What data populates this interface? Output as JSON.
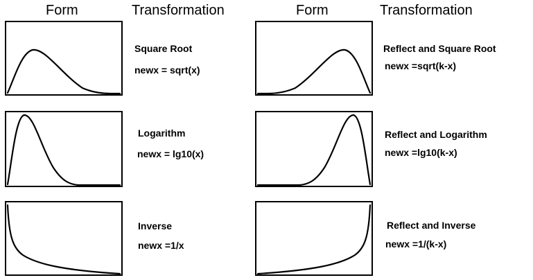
{
  "headers": {
    "left_form": "Form",
    "left_transformation": "Transformation",
    "right_form": "Form",
    "right_transformation": "Transformation"
  },
  "rows": [
    {
      "left": {
        "shape": "moderate-positive-skew",
        "name": "Square Root",
        "formula": "newx = sqrt(x)"
      },
      "right": {
        "shape": "moderate-negative-skew",
        "name": "Reflect and Square Root",
        "formula": "newx =sqrt(k-x)"
      }
    },
    {
      "left": {
        "shape": "substantial-positive-skew",
        "name": "Logarithm",
        "formula": "newx = lg10(x)"
      },
      "right": {
        "shape": "substantial-negative-skew",
        "name": "Reflect and Logarithm",
        "formula": "newx =lg10(k-x)"
      }
    },
    {
      "left": {
        "shape": "severe-positive-skew",
        "name": "Inverse",
        "formula": "newx =1/x"
      },
      "right": {
        "shape": "severe-negative-skew",
        "name": "Reflect and Inverse",
        "formula": "newx =1/(k-x)"
      }
    }
  ]
}
